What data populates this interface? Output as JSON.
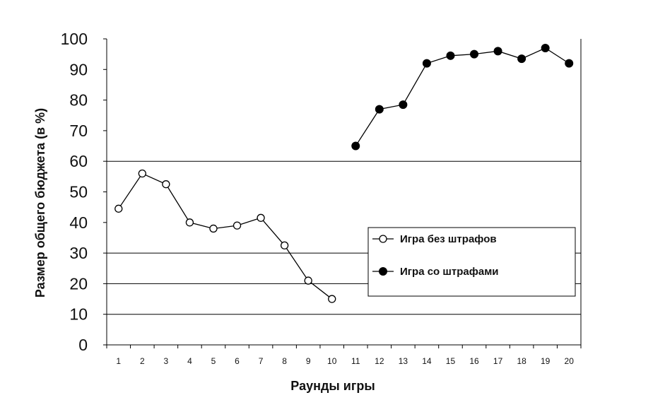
{
  "chart_data": {
    "type": "line",
    "xlabel": "Раунды игры",
    "ylabel": "Размер общего бюджета (в %)",
    "xlim": [
      1,
      20
    ],
    "ylim": [
      0,
      100
    ],
    "categories": [
      "1",
      "2",
      "3",
      "4",
      "5",
      "6",
      "7",
      "8",
      "9",
      "10",
      "11",
      "12",
      "13",
      "14",
      "15",
      "16",
      "17",
      "18",
      "19",
      "20"
    ],
    "y_ticks": [
      "0",
      "10",
      "20",
      "30",
      "40",
      "50",
      "60",
      "70",
      "80",
      "90",
      "100"
    ],
    "gridlines_y": [
      10,
      20,
      30,
      60
    ],
    "legend_position": "right",
    "series": [
      {
        "name": "Игра без штрафов",
        "marker": "open-circle",
        "color": "#000000",
        "x": [
          1,
          2,
          3,
          4,
          5,
          6,
          7,
          8,
          9,
          10
        ],
        "values": [
          44.5,
          56,
          52.5,
          40,
          38,
          39,
          41.5,
          32.5,
          21,
          15
        ]
      },
      {
        "name": "Игра со штрафами",
        "marker": "filled-circle",
        "color": "#000000",
        "x": [
          11,
          12,
          13,
          14,
          15,
          16,
          17,
          18,
          19,
          20
        ],
        "values": [
          65,
          77,
          78.5,
          92,
          94.5,
          95,
          96,
          93.5,
          97,
          92
        ]
      }
    ]
  }
}
